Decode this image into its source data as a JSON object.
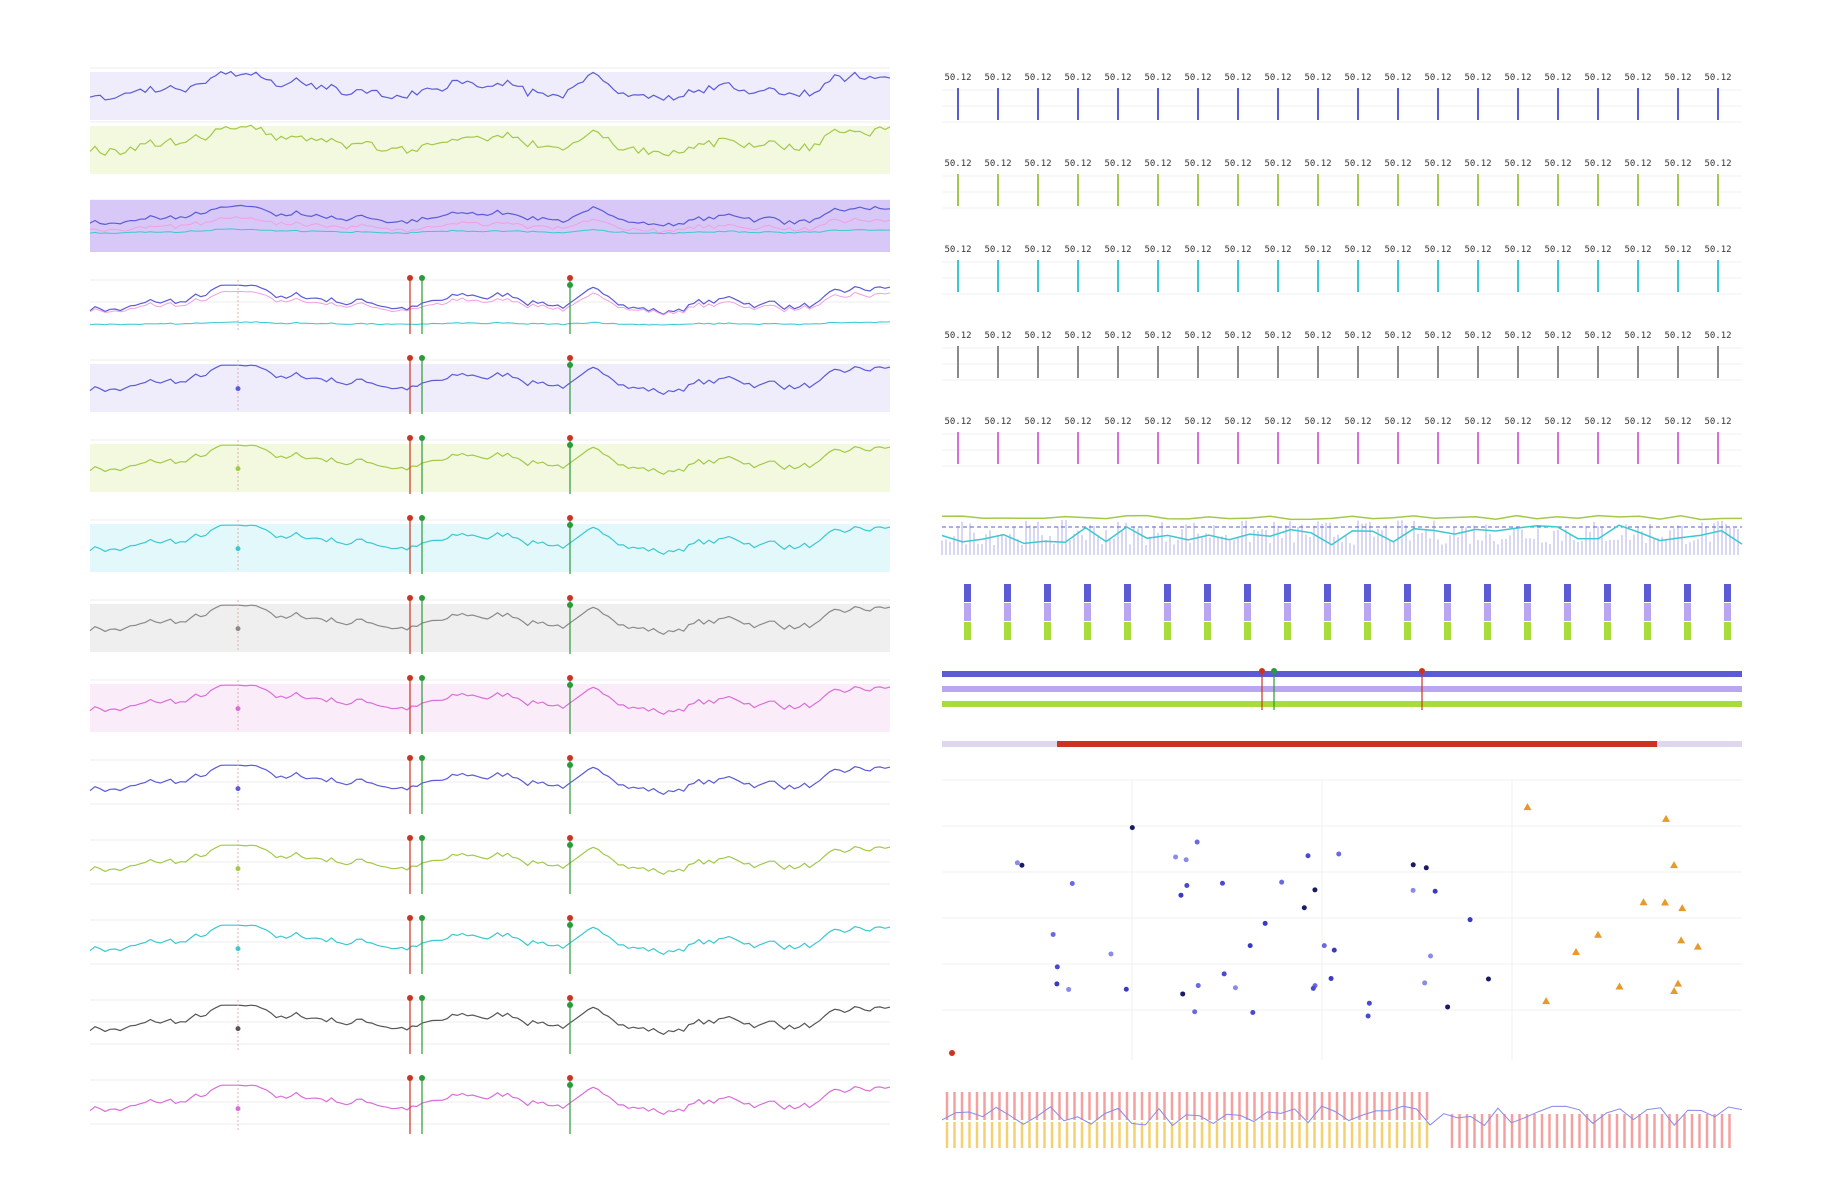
{
  "colors": {
    "indigo": "#5b5bd6",
    "lime": "#a3c94a",
    "cyan": "#3cc8d0",
    "gray": "#8a8a8a",
    "dark": "#555555",
    "magenta": "#d86fd8",
    "lavender": "#b9a6f0",
    "pink": "#f0a0e0",
    "red": "#cc3322",
    "green": "#2a9a3a",
    "orange": "#e59a2a",
    "navy": "#1a1a66",
    "salmon": "#f4a0a0",
    "yellow": "#f4d070",
    "light_lavender": "#ddd8f0"
  },
  "value_label": "50.12",
  "chart_data": [
    {
      "type": "line",
      "panel": "left-stack",
      "rows": 13,
      "points_per_row": 160,
      "markers": [
        {
          "kind": "red",
          "at": 0.4
        },
        {
          "kind": "green",
          "at": 0.415
        },
        {
          "kind": "red-green",
          "at": 0.6
        }
      ],
      "hover_marker_at": 0.185
    },
    {
      "type": "bar",
      "panel": "right-lollipop-rows",
      "rows": 5,
      "columns": 20,
      "label": "50.12"
    },
    {
      "type": "line",
      "panel": "right-dense-timeline"
    },
    {
      "type": "bar",
      "panel": "right-stacked-segments",
      "columns": 20
    },
    {
      "type": "line",
      "panel": "right-tracks"
    },
    {
      "type": "scatter",
      "panel": "right-scatter",
      "series": [
        {
          "marker": "circle"
        },
        {
          "marker": "triangle"
        }
      ]
    },
    {
      "type": "bar",
      "panel": "right-bottom-bars"
    }
  ]
}
